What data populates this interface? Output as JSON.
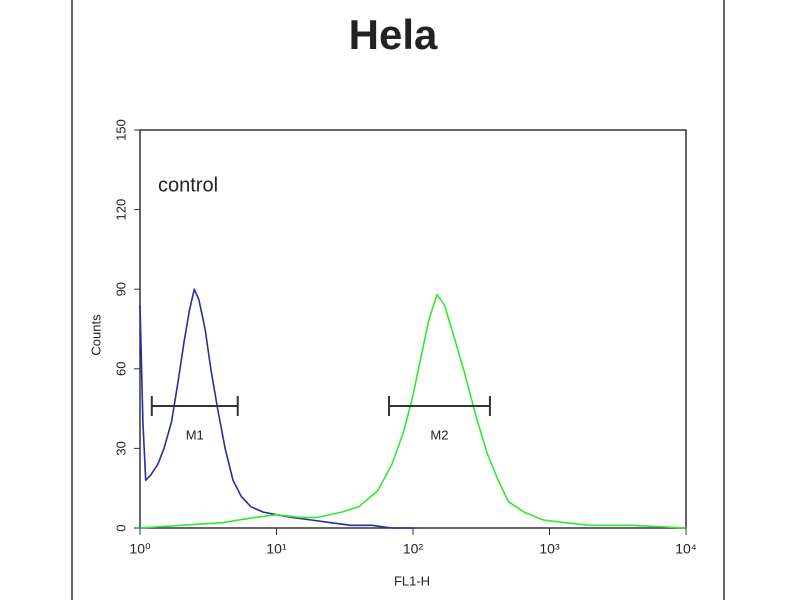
{
  "chart_data": {
    "type": "line",
    "title": "Hela",
    "annotation": "control",
    "xlabel": "FL1-H",
    "ylabel": "Counts",
    "xscale": "log",
    "xlim": [
      1,
      10000
    ],
    "ylim": [
      0,
      150
    ],
    "xticks": [
      {
        "value": 1,
        "label": "10⁰"
      },
      {
        "value": 10,
        "label": "10¹"
      },
      {
        "value": 100,
        "label": "10²"
      },
      {
        "value": 1000,
        "label": "10³"
      },
      {
        "value": 10000,
        "label": "10⁴"
      }
    ],
    "yticks": [
      0,
      30,
      60,
      90,
      120,
      150
    ],
    "series": [
      {
        "color": "#2b2ba0",
        "x": [
          1,
          1.05,
          1.1,
          1.2,
          1.35,
          1.5,
          1.7,
          1.9,
          2.1,
          2.3,
          2.5,
          2.7,
          3.0,
          3.3,
          3.7,
          4.2,
          4.8,
          5.5,
          6.5,
          8,
          10,
          13,
          18,
          25,
          35,
          50,
          70,
          100
        ],
        "values": [
          84,
          40,
          18,
          20,
          24,
          30,
          40,
          55,
          70,
          82,
          90,
          86,
          75,
          60,
          45,
          30,
          18,
          12,
          8,
          6,
          5,
          4,
          3,
          2,
          1,
          1,
          0,
          0
        ]
      },
      {
        "color": "#33e833",
        "x": [
          1,
          2,
          4,
          7,
          10,
          15,
          20,
          30,
          40,
          55,
          70,
          85,
          100,
          115,
          130,
          150,
          170,
          200,
          240,
          290,
          350,
          420,
          500,
          650,
          900,
          1300,
          2000,
          4000,
          10000
        ],
        "values": [
          0,
          1,
          2,
          4,
          5,
          4,
          4,
          6,
          8,
          14,
          24,
          36,
          50,
          65,
          78,
          88,
          84,
          72,
          58,
          42,
          28,
          18,
          10,
          6,
          3,
          2,
          1,
          1,
          0
        ]
      }
    ],
    "markers": [
      {
        "label": "M1",
        "range": [
          1.22,
          5.2
        ],
        "y": 46
      },
      {
        "label": "M2",
        "range": [
          66.7,
          366
        ],
        "y": 46
      }
    ]
  }
}
